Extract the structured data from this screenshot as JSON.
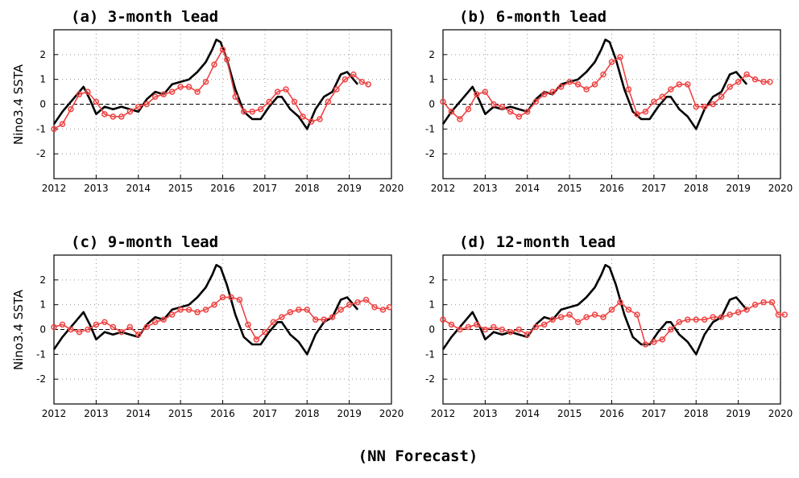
{
  "caption": "(NN Forecast)",
  "colors": {
    "observed": "#000000",
    "forecast": "#ee4444",
    "grid": "#999999"
  },
  "chart_data": [
    {
      "type": "line",
      "title": "(a) 3-month lead",
      "ylabel": "Nino3.4 SSTA",
      "xlim": [
        2012,
        2020
      ],
      "ylim": [
        -3,
        3
      ],
      "xticks": [
        "2012",
        "2013",
        "2014",
        "2015",
        "2016",
        "2017",
        "2018",
        "2019",
        "2020"
      ],
      "yticks": [
        "-2",
        "-1",
        "0",
        "1",
        "2"
      ],
      "grid": true,
      "series": [
        {
          "role": "observed",
          "x": [
            2012.0,
            2012.2,
            2012.5,
            2012.7,
            2012.85,
            2013.0,
            2013.2,
            2013.4,
            2013.6,
            2013.8,
            2014.0,
            2014.2,
            2014.4,
            2014.6,
            2014.8,
            2015.0,
            2015.2,
            2015.4,
            2015.6,
            2015.75,
            2015.85,
            2015.95,
            2016.1,
            2016.3,
            2016.5,
            2016.7,
            2016.9,
            2017.1,
            2017.3,
            2017.4,
            2017.6,
            2017.8,
            2018.0,
            2018.2,
            2018.4,
            2018.6,
            2018.8,
            2018.95,
            2019.1,
            2019.2
          ],
          "y": [
            -0.8,
            -0.3,
            0.3,
            0.7,
            0.2,
            -0.4,
            -0.1,
            -0.2,
            -0.1,
            -0.2,
            -0.3,
            0.2,
            0.5,
            0.4,
            0.8,
            0.9,
            1.0,
            1.3,
            1.7,
            2.2,
            2.6,
            2.5,
            1.8,
            0.6,
            -0.3,
            -0.6,
            -0.6,
            -0.1,
            0.3,
            0.3,
            -0.2,
            -0.5,
            -1.0,
            -0.2,
            0.3,
            0.5,
            1.2,
            1.3,
            1.0,
            0.8
          ]
        },
        {
          "role": "forecast",
          "x": [
            2012.0,
            2012.2,
            2012.4,
            2012.6,
            2012.8,
            2013.0,
            2013.2,
            2013.4,
            2013.6,
            2013.8,
            2014.0,
            2014.2,
            2014.4,
            2014.6,
            2014.8,
            2015.0,
            2015.2,
            2015.4,
            2015.6,
            2015.8,
            2016.0,
            2016.1,
            2016.3,
            2016.5,
            2016.7,
            2016.9,
            2017.1,
            2017.3,
            2017.5,
            2017.7,
            2017.9,
            2018.1,
            2018.3,
            2018.5,
            2018.7,
            2018.9,
            2019.1,
            2019.3,
            2019.45
          ],
          "y": [
            -1.0,
            -0.8,
            -0.2,
            0.4,
            0.5,
            0.1,
            -0.4,
            -0.5,
            -0.5,
            -0.3,
            -0.1,
            0.0,
            0.3,
            0.4,
            0.5,
            0.7,
            0.7,
            0.5,
            0.9,
            1.6,
            2.2,
            1.8,
            0.3,
            -0.3,
            -0.3,
            -0.2,
            0.1,
            0.5,
            0.6,
            0.1,
            -0.5,
            -0.7,
            -0.6,
            0.1,
            0.6,
            1.0,
            1.2,
            0.9,
            0.8
          ]
        }
      ]
    },
    {
      "type": "line",
      "title": "(b) 6-month lead",
      "ylabel": "",
      "xlim": [
        2012,
        2020
      ],
      "ylim": [
        -3,
        3
      ],
      "xticks": [
        "2012",
        "2013",
        "2014",
        "2015",
        "2016",
        "2017",
        "2018",
        "2019",
        "2020"
      ],
      "yticks": [
        "-2",
        "-1",
        "0",
        "1",
        "2"
      ],
      "grid": true,
      "series": [
        {
          "role": "observed",
          "x": [
            2012.0,
            2012.2,
            2012.5,
            2012.7,
            2012.85,
            2013.0,
            2013.2,
            2013.4,
            2013.6,
            2013.8,
            2014.0,
            2014.2,
            2014.4,
            2014.6,
            2014.8,
            2015.0,
            2015.2,
            2015.4,
            2015.6,
            2015.75,
            2015.85,
            2015.95,
            2016.1,
            2016.3,
            2016.5,
            2016.7,
            2016.9,
            2017.1,
            2017.3,
            2017.4,
            2017.6,
            2017.8,
            2018.0,
            2018.2,
            2018.4,
            2018.6,
            2018.8,
            2018.95,
            2019.1,
            2019.2
          ],
          "y": [
            -0.8,
            -0.3,
            0.3,
            0.7,
            0.2,
            -0.4,
            -0.1,
            -0.2,
            -0.1,
            -0.2,
            -0.3,
            0.2,
            0.5,
            0.4,
            0.8,
            0.9,
            1.0,
            1.3,
            1.7,
            2.2,
            2.6,
            2.5,
            1.8,
            0.6,
            -0.3,
            -0.6,
            -0.6,
            -0.1,
            0.3,
            0.3,
            -0.2,
            -0.5,
            -1.0,
            -0.2,
            0.3,
            0.5,
            1.2,
            1.3,
            1.0,
            0.8
          ]
        },
        {
          "role": "forecast",
          "x": [
            2012.0,
            2012.2,
            2012.4,
            2012.6,
            2012.8,
            2013.0,
            2013.2,
            2013.4,
            2013.6,
            2013.8,
            2014.0,
            2014.2,
            2014.4,
            2014.6,
            2014.8,
            2015.0,
            2015.2,
            2015.4,
            2015.6,
            2015.8,
            2016.0,
            2016.2,
            2016.4,
            2016.6,
            2016.8,
            2017.0,
            2017.2,
            2017.4,
            2017.6,
            2017.8,
            2018.0,
            2018.2,
            2018.4,
            2018.6,
            2018.8,
            2019.0,
            2019.2,
            2019.4,
            2019.6,
            2019.75
          ],
          "y": [
            0.1,
            -0.3,
            -0.6,
            -0.2,
            0.4,
            0.5,
            0.0,
            -0.1,
            -0.3,
            -0.5,
            -0.3,
            0.1,
            0.4,
            0.5,
            0.7,
            0.9,
            0.8,
            0.6,
            0.8,
            1.2,
            1.7,
            1.9,
            0.6,
            -0.4,
            -0.3,
            0.1,
            0.3,
            0.6,
            0.8,
            0.8,
            -0.1,
            -0.1,
            0.0,
            0.3,
            0.7,
            0.9,
            1.2,
            1.0,
            0.9,
            0.9
          ]
        }
      ]
    },
    {
      "type": "line",
      "title": "(c) 9-month lead",
      "ylabel": "Nino3.4 SSTA",
      "xlim": [
        2012,
        2020
      ],
      "ylim": [
        -3,
        3
      ],
      "xticks": [
        "2012",
        "2013",
        "2014",
        "2015",
        "2016",
        "2017",
        "2018",
        "2019",
        "2020"
      ],
      "yticks": [
        "-2",
        "-1",
        "0",
        "1",
        "2"
      ],
      "grid": true,
      "series": [
        {
          "role": "observed",
          "x": [
            2012.0,
            2012.2,
            2012.5,
            2012.7,
            2012.85,
            2013.0,
            2013.2,
            2013.4,
            2013.6,
            2013.8,
            2014.0,
            2014.2,
            2014.4,
            2014.6,
            2014.8,
            2015.0,
            2015.2,
            2015.4,
            2015.6,
            2015.75,
            2015.85,
            2015.95,
            2016.1,
            2016.3,
            2016.5,
            2016.7,
            2016.9,
            2017.1,
            2017.3,
            2017.4,
            2017.6,
            2017.8,
            2018.0,
            2018.2,
            2018.4,
            2018.6,
            2018.8,
            2018.95,
            2019.1,
            2019.2
          ],
          "y": [
            -0.8,
            -0.3,
            0.3,
            0.7,
            0.2,
            -0.4,
            -0.1,
            -0.2,
            -0.1,
            -0.2,
            -0.3,
            0.2,
            0.5,
            0.4,
            0.8,
            0.9,
            1.0,
            1.3,
            1.7,
            2.2,
            2.6,
            2.5,
            1.8,
            0.6,
            -0.3,
            -0.6,
            -0.6,
            -0.1,
            0.3,
            0.3,
            -0.2,
            -0.5,
            -1.0,
            -0.2,
            0.3,
            0.5,
            1.2,
            1.3,
            1.0,
            0.8
          ]
        },
        {
          "role": "forecast",
          "x": [
            2012.0,
            2012.2,
            2012.4,
            2012.6,
            2012.8,
            2013.0,
            2013.2,
            2013.4,
            2013.6,
            2013.8,
            2014.0,
            2014.2,
            2014.4,
            2014.6,
            2014.8,
            2015.0,
            2015.2,
            2015.4,
            2015.6,
            2015.8,
            2016.0,
            2016.2,
            2016.4,
            2016.6,
            2016.8,
            2017.0,
            2017.2,
            2017.4,
            2017.6,
            2017.8,
            2018.0,
            2018.2,
            2018.4,
            2018.6,
            2018.8,
            2019.0,
            2019.2,
            2019.4,
            2019.6,
            2019.8,
            2019.95
          ],
          "y": [
            0.1,
            0.2,
            0.0,
            -0.1,
            0.0,
            0.2,
            0.3,
            0.1,
            -0.1,
            0.1,
            -0.2,
            0.1,
            0.3,
            0.4,
            0.6,
            0.8,
            0.8,
            0.7,
            0.8,
            1.0,
            1.3,
            1.3,
            1.2,
            0.2,
            -0.4,
            -0.1,
            0.3,
            0.5,
            0.7,
            0.8,
            0.8,
            0.4,
            0.4,
            0.5,
            0.8,
            1.0,
            1.1,
            1.2,
            0.9,
            0.8,
            0.9
          ]
        }
      ]
    },
    {
      "type": "line",
      "title": "(d) 12-month lead",
      "ylabel": "",
      "xlim": [
        2012,
        2020
      ],
      "ylim": [
        -3,
        3
      ],
      "xticks": [
        "2012",
        "2013",
        "2014",
        "2015",
        "2016",
        "2017",
        "2018",
        "2019",
        "2020"
      ],
      "yticks": [
        "-2",
        "-1",
        "0",
        "1",
        "2"
      ],
      "grid": true,
      "series": [
        {
          "role": "observed",
          "x": [
            2012.0,
            2012.2,
            2012.5,
            2012.7,
            2012.85,
            2013.0,
            2013.2,
            2013.4,
            2013.6,
            2013.8,
            2014.0,
            2014.2,
            2014.4,
            2014.6,
            2014.8,
            2015.0,
            2015.2,
            2015.4,
            2015.6,
            2015.75,
            2015.85,
            2015.95,
            2016.1,
            2016.3,
            2016.5,
            2016.7,
            2016.9,
            2017.1,
            2017.3,
            2017.4,
            2017.6,
            2017.8,
            2018.0,
            2018.2,
            2018.4,
            2018.6,
            2018.8,
            2018.95,
            2019.1,
            2019.2
          ],
          "y": [
            -0.8,
            -0.3,
            0.3,
            0.7,
            0.2,
            -0.4,
            -0.1,
            -0.2,
            -0.1,
            -0.2,
            -0.3,
            0.2,
            0.5,
            0.4,
            0.8,
            0.9,
            1.0,
            1.3,
            1.7,
            2.2,
            2.6,
            2.5,
            1.8,
            0.6,
            -0.3,
            -0.6,
            -0.6,
            -0.1,
            0.3,
            0.3,
            -0.2,
            -0.5,
            -1.0,
            -0.2,
            0.3,
            0.5,
            1.2,
            1.3,
            1.0,
            0.8
          ]
        },
        {
          "role": "forecast",
          "x": [
            2012.0,
            2012.2,
            2012.4,
            2012.6,
            2012.8,
            2013.0,
            2013.2,
            2013.4,
            2013.6,
            2013.8,
            2014.0,
            2014.2,
            2014.4,
            2014.6,
            2014.8,
            2015.0,
            2015.2,
            2015.4,
            2015.6,
            2015.8,
            2016.0,
            2016.2,
            2016.4,
            2016.6,
            2016.8,
            2017.0,
            2017.2,
            2017.4,
            2017.6,
            2017.8,
            2018.0,
            2018.2,
            2018.4,
            2018.6,
            2018.8,
            2019.0,
            2019.2,
            2019.4,
            2019.6,
            2019.8,
            2019.95,
            2020.1
          ],
          "y": [
            0.4,
            0.2,
            0.0,
            0.1,
            0.2,
            0.0,
            0.1,
            0.0,
            -0.1,
            0.0,
            -0.2,
            0.1,
            0.2,
            0.4,
            0.5,
            0.6,
            0.3,
            0.5,
            0.6,
            0.5,
            0.8,
            1.1,
            0.8,
            0.6,
            -0.6,
            -0.5,
            -0.4,
            0.0,
            0.3,
            0.4,
            0.4,
            0.4,
            0.5,
            0.5,
            0.6,
            0.7,
            0.8,
            1.0,
            1.1,
            1.1,
            0.6,
            0.6
          ]
        }
      ]
    }
  ]
}
